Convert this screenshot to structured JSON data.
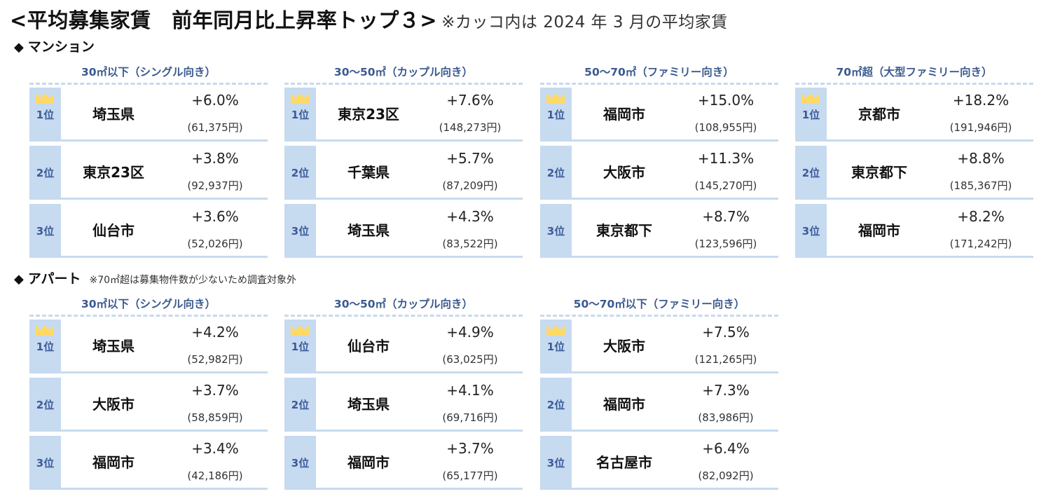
{
  "header": {
    "title": "<平均募集家賃　前年同月比上昇率トップ３>",
    "note": "※カッコ内は 2024 年 3 月の平均家賃"
  },
  "colors": {
    "rank_bg": "#c6daf0",
    "rank_text": "#3b5a9a",
    "group_title": "#3b5a8f",
    "crown": "#ffd966",
    "divider": "#c7dbee"
  },
  "sections": [
    {
      "label": "マンション",
      "note": "",
      "groups": [
        {
          "title": "30㎡以下（シングル向き）",
          "rows": [
            {
              "rank": "1位",
              "name": "埼玉県",
              "pct": "+6.0%",
              "rent": "(61,375円)"
            },
            {
              "rank": "2位",
              "name": "東京23区",
              "pct": "+3.8%",
              "rent": "(92,937円)"
            },
            {
              "rank": "3位",
              "name": "仙台市",
              "pct": "+3.6%",
              "rent": "(52,026円)"
            }
          ]
        },
        {
          "title": "30～50㎡（カップル向き）",
          "rows": [
            {
              "rank": "1位",
              "name": "東京23区",
              "pct": "+7.6%",
              "rent": "(148,273円)"
            },
            {
              "rank": "2位",
              "name": "千葉県",
              "pct": "+5.7%",
              "rent": "(87,209円)"
            },
            {
              "rank": "3位",
              "name": "埼玉県",
              "pct": "+4.3%",
              "rent": "(83,522円)"
            }
          ]
        },
        {
          "title": "50～70㎡（ファミリー向き）",
          "rows": [
            {
              "rank": "1位",
              "name": "福岡市",
              "pct": "+15.0%",
              "rent": "(108,955円)"
            },
            {
              "rank": "2位",
              "name": "大阪市",
              "pct": "+11.3%",
              "rent": "(145,270円)"
            },
            {
              "rank": "3位",
              "name": "東京都下",
              "pct": "+8.7%",
              "rent": "(123,596円)"
            }
          ]
        },
        {
          "title": "70㎡超（大型ファミリー向き）",
          "rows": [
            {
              "rank": "1位",
              "name": "京都市",
              "pct": "+18.2%",
              "rent": "(191,946円)"
            },
            {
              "rank": "2位",
              "name": "東京都下",
              "pct": "+8.8%",
              "rent": "(185,367円)"
            },
            {
              "rank": "3位",
              "name": "福岡市",
              "pct": "+8.2%",
              "rent": "(171,242円)"
            }
          ]
        }
      ]
    },
    {
      "label": "アパート",
      "note": "※70㎡超は募集物件数が少ないため調査対象外",
      "groups": [
        {
          "title": "30㎡以下（シングル向き）",
          "rows": [
            {
              "rank": "1位",
              "name": "埼玉県",
              "pct": "+4.2%",
              "rent": "(52,982円)"
            },
            {
              "rank": "2位",
              "name": "大阪市",
              "pct": "+3.7%",
              "rent": "(58,859円)"
            },
            {
              "rank": "3位",
              "name": "福岡市",
              "pct": "+3.4%",
              "rent": "(42,186円)"
            }
          ]
        },
        {
          "title": "30～50㎡（カップル向き）",
          "rows": [
            {
              "rank": "1位",
              "name": "仙台市",
              "pct": "+4.9%",
              "rent": "(63,025円)"
            },
            {
              "rank": "2位",
              "name": "埼玉県",
              "pct": "+4.1%",
              "rent": "(69,716円)"
            },
            {
              "rank": "3位",
              "name": "福岡市",
              "pct": "+3.7%",
              "rent": "(65,177円)"
            }
          ]
        },
        {
          "title": "50～70㎡以下（ファミリー向き）",
          "rows": [
            {
              "rank": "1位",
              "name": "大阪市",
              "pct": "+7.5%",
              "rent": "(121,265円)"
            },
            {
              "rank": "2位",
              "name": "福岡市",
              "pct": "+7.3%",
              "rent": "(83,986円)"
            },
            {
              "rank": "3位",
              "name": "名古屋市",
              "pct": "+6.4%",
              "rent": "(82,092円)"
            }
          ]
        }
      ]
    }
  ]
}
